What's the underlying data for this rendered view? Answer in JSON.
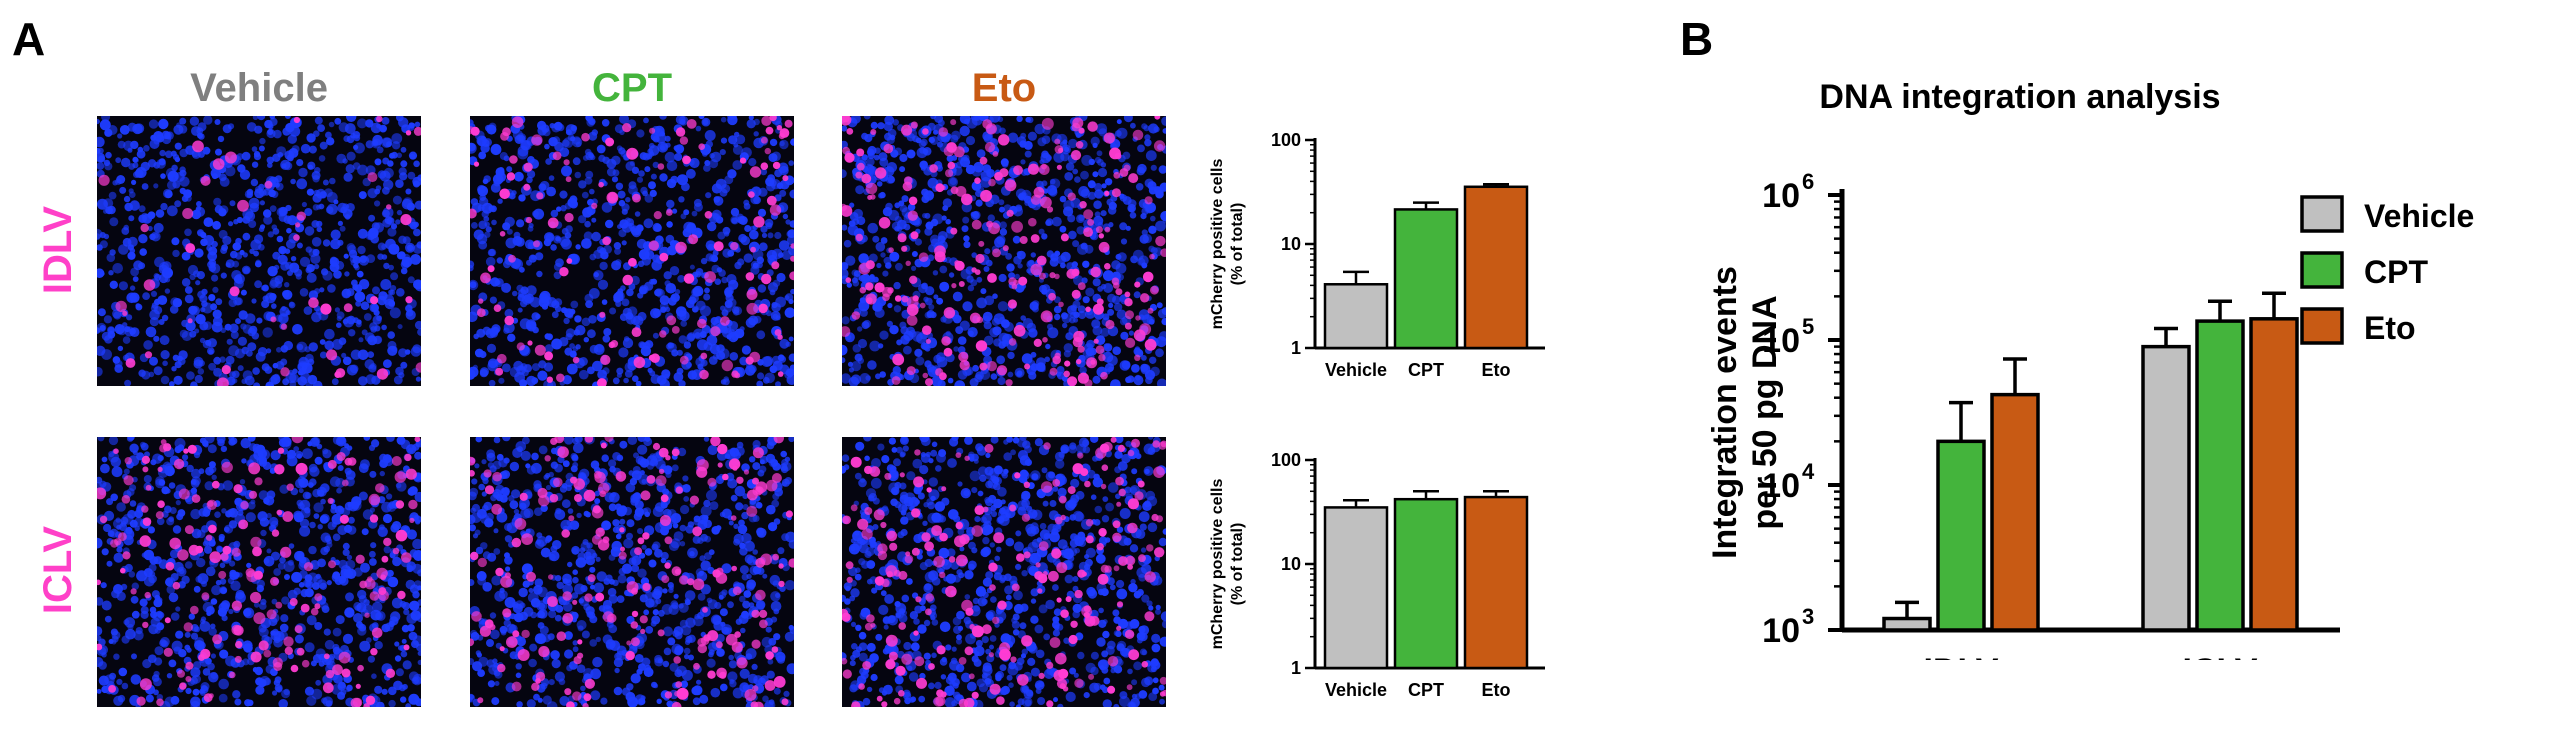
{
  "panel_a": {
    "letter": "A",
    "columns": [
      {
        "label": "Vehicle",
        "color": "#7f7f7f"
      },
      {
        "label": "CPT",
        "color": "#44b43c"
      },
      {
        "label": "Eto",
        "color": "#c85a14"
      }
    ],
    "rows": [
      {
        "label": "IDLV",
        "color": "#ff40c8"
      },
      {
        "label": "ICLV",
        "color": "#ff40c8"
      }
    ],
    "micrograph_colors": {
      "background": "#050510",
      "nuclei": "#1e3cff",
      "mcherry": "#ff3cd2"
    }
  },
  "panel_b": {
    "letter": "B"
  },
  "chart_data": [
    {
      "type": "bar",
      "title": "",
      "ylabel": "mCherry positive cells (% of total)",
      "xlabel": "",
      "yscale": "log",
      "ylim": [
        1,
        100
      ],
      "ytick_labels": [
        "1",
        "10",
        "100"
      ],
      "categories": [
        "Vehicle",
        "CPT",
        "Eto"
      ],
      "values": [
        4.1,
        21.5,
        35.5
      ],
      "errors": [
        1.3,
        3.5,
        2.0
      ],
      "colors": [
        "#c0c0c0",
        "#44b43c",
        "#c85a14"
      ]
    },
    {
      "type": "bar",
      "title": "",
      "ylabel": "mCherry positive cells (% of total)",
      "xlabel": "",
      "yscale": "log",
      "ylim": [
        1,
        100
      ],
      "ytick_labels": [
        "1",
        "10",
        "100"
      ],
      "categories": [
        "Vehicle",
        "CPT",
        "Eto"
      ],
      "values": [
        35,
        42,
        44
      ],
      "errors": [
        6,
        8,
        6
      ],
      "colors": [
        "#c0c0c0",
        "#44b43c",
        "#c85a14"
      ]
    },
    {
      "type": "bar",
      "title": "DNA integration analysis",
      "ylabel": "Integration events per 50 pg DNA",
      "ylabel_lines": [
        "Integration events",
        "per 50 pg DNA"
      ],
      "xlabel": "",
      "yscale": "log",
      "ylim": [
        1000,
        1000000
      ],
      "ytick_labels": [
        {
          "base": "10",
          "exp": "3"
        },
        {
          "base": "10",
          "exp": "4"
        },
        {
          "base": "10",
          "exp": "5"
        },
        {
          "base": "10",
          "exp": "6"
        }
      ],
      "categories": [
        "IDLV",
        "ICLV"
      ],
      "series": [
        {
          "name": "Vehicle",
          "color": "#c0c0c0",
          "values": [
            1200,
            90000
          ],
          "errors": [
            350,
            30000
          ]
        },
        {
          "name": "CPT",
          "color": "#44b43c",
          "values": [
            20000,
            135000
          ],
          "errors": [
            17000,
            50000
          ]
        },
        {
          "name": "Eto",
          "color": "#c85a14",
          "values": [
            42000,
            140000
          ],
          "errors": [
            32000,
            70000
          ]
        }
      ],
      "legend_position": "right"
    }
  ]
}
